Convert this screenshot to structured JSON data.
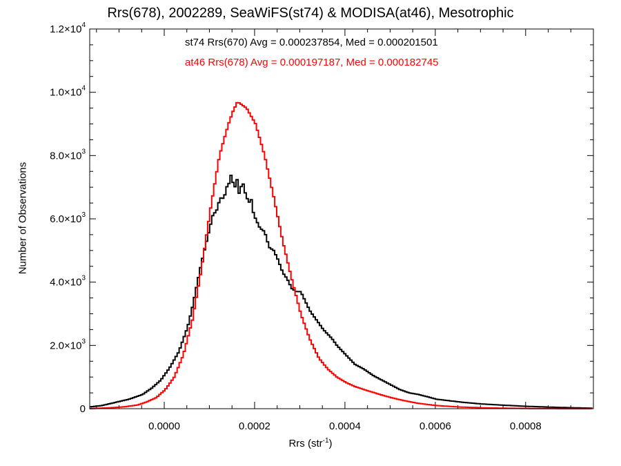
{
  "chart_data": {
    "type": "histogram",
    "title": "Rrs(678), 2002289, SeaWiFS(st74) & MODISA(at46), Mesotrophic",
    "xlabel": "Rrs (str",
    "xlabel_sup": "-1",
    "xlabel_suffix": ")",
    "ylabel": "Number of Observations",
    "xlim": [
      -0.000165,
      0.00095
    ],
    "ylim": [
      0,
      12000
    ],
    "x_ticks": [
      {
        "value": 0.0,
        "label": "0.0000"
      },
      {
        "value": 0.0002,
        "label": "0.0002"
      },
      {
        "value": 0.0004,
        "label": "0.0004"
      },
      {
        "value": 0.0006,
        "label": "0.0006"
      },
      {
        "value": 0.0008,
        "label": "0.0008"
      }
    ],
    "y_ticks": [
      {
        "value": 0,
        "mant": "0",
        "exp": ""
      },
      {
        "value": 2000,
        "mant": "2.0×10",
        "exp": "3"
      },
      {
        "value": 4000,
        "mant": "4.0×10",
        "exp": "3"
      },
      {
        "value": 6000,
        "mant": "6.0×10",
        "exp": "3"
      },
      {
        "value": 8000,
        "mant": "8.0×10",
        "exp": "3"
      },
      {
        "value": 10000,
        "mant": "1.0×10",
        "exp": "4"
      },
      {
        "value": 12000,
        "mant": "1.2×10",
        "exp": "4"
      }
    ],
    "grid": false,
    "annotations": [
      {
        "text": "st74 Rrs(670) Avg = 0.000237854, Med = 0.000201501",
        "color": "#000000"
      },
      {
        "text": "at46 Rrs(678) Avg = 0.000197187, Med = 0.000182745",
        "color": "#ff0000"
      }
    ],
    "series": [
      {
        "key": "st74",
        "color": "#000000",
        "stroke_width": 2,
        "x": [
          -0.00017,
          -0.00014,
          -0.00011,
          -8e-05,
          -5e-05,
          -3e-05,
          -1e-05,
          1e-05,
          3e-05,
          5e-05,
          6e-05,
          7e-05,
          8e-05,
          9e-05,
          9.5e-05,
          0.0001,
          0.000105,
          0.00011,
          0.000115,
          0.00012,
          0.000125,
          0.00013,
          0.000135,
          0.00014,
          0.000145,
          0.00015,
          0.000155,
          0.00016,
          0.000165,
          0.00017,
          0.000175,
          0.00018,
          0.000185,
          0.00019,
          0.000195,
          0.0002,
          0.00021,
          0.00022,
          0.00023,
          0.00024,
          0.00025,
          0.00026,
          0.00027,
          0.00028,
          0.00029,
          0.0003,
          0.00031,
          0.00032,
          0.00033,
          0.00034,
          0.00035,
          0.00036,
          0.00037,
          0.00038,
          0.00039,
          0.0004,
          0.00042,
          0.00044,
          0.00046,
          0.00048,
          0.0005,
          0.00052,
          0.00054,
          0.00056,
          0.00058,
          0.0006,
          0.00063,
          0.00066,
          0.0007,
          0.00075,
          0.0008,
          0.00085,
          0.0009,
          0.00095
        ],
        "y": [
          50,
          100,
          200,
          300,
          450,
          650,
          900,
          1300,
          1800,
          2600,
          3200,
          3900,
          4600,
          5200,
          5500,
          5800,
          6100,
          6200,
          6300,
          6600,
          6700,
          6600,
          7000,
          7050,
          7400,
          7150,
          7000,
          7300,
          6600,
          7300,
          6900,
          6700,
          6500,
          6650,
          6200,
          6000,
          5700,
          5600,
          5100,
          5000,
          4700,
          4300,
          4100,
          3800,
          3700,
          3700,
          3400,
          3100,
          2900,
          2700,
          2500,
          2350,
          2200,
          2000,
          1850,
          1700,
          1400,
          1250,
          1050,
          900,
          750,
          600,
          500,
          450,
          380,
          300,
          250,
          200,
          150,
          110,
          75,
          50,
          30,
          15
        ]
      },
      {
        "key": "at46",
        "color": "#ff0000",
        "stroke_width": 2,
        "x": [
          -0.00017,
          -0.00012,
          -9e-05,
          -6e-05,
          -4e-05,
          -2e-05,
          0.0,
          2e-05,
          4e-05,
          6e-05,
          8e-05,
          0.0001,
          0.00012,
          0.00014,
          0.00015,
          0.00016,
          0.00017,
          0.00018,
          0.0002,
          0.00022,
          0.00024,
          0.00026,
          0.00028,
          0.0003,
          0.00032,
          0.00034,
          0.00036,
          0.00038,
          0.0004,
          0.00042,
          0.00045,
          0.00048,
          0.0005,
          0.00053,
          0.00056,
          0.0006,
          0.00065,
          0.0007,
          0.00075,
          0.0008,
          0.00085,
          0.0009,
          0.00095
        ],
        "y": [
          0,
          30,
          60,
          120,
          220,
          350,
          600,
          1000,
          1700,
          2800,
          4400,
          6300,
          8000,
          9000,
          9400,
          9700,
          9600,
          9500,
          9000,
          8000,
          6700,
          5300,
          4100,
          3000,
          2200,
          1600,
          1250,
          1000,
          830,
          700,
          560,
          430,
          350,
          250,
          170,
          100,
          55,
          30,
          15,
          8,
          4,
          2,
          1
        ]
      }
    ]
  }
}
